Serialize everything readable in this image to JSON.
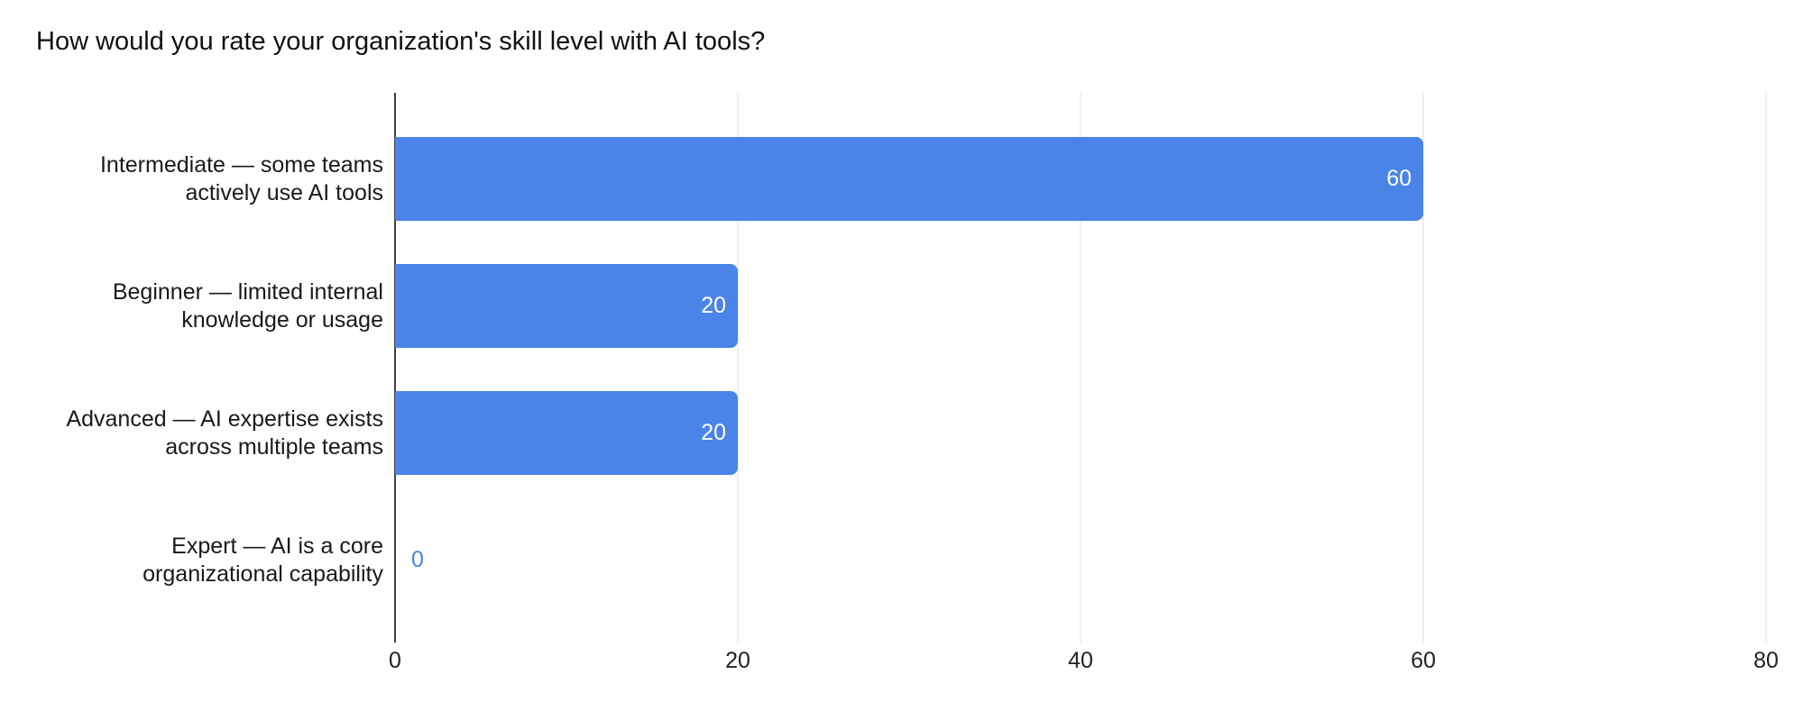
{
  "title": "How would you rate your organization's skill level with AI tools?",
  "chart_data": {
    "type": "bar",
    "orientation": "horizontal",
    "title": "How would you rate your organization's skill level with AI tools?",
    "categories": [
      "Intermediate — some teams actively use AI tools",
      "Beginner — limited internal knowledge or usage",
      "Advanced — AI expertise exists across multiple teams",
      "Expert — AI is a core organizational capability"
    ],
    "values": [
      60,
      20,
      20,
      0
    ],
    "value_labels": [
      "60",
      "20",
      "20",
      "0"
    ],
    "xlim": [
      0,
      80
    ],
    "x_ticks": [
      "0",
      "20",
      "40",
      "60",
      "80"
    ],
    "grid": true,
    "legend": "none",
    "colors": {
      "bar": "#4a84e8",
      "value_label_inside": "#ffffff",
      "zero_value_label": "#4a84e8",
      "axis_line": "#424242",
      "gridline": "#dcdcdc",
      "tick_text": "#222222",
      "category_text": "#1a1a1a",
      "title_text": "#111111"
    }
  }
}
